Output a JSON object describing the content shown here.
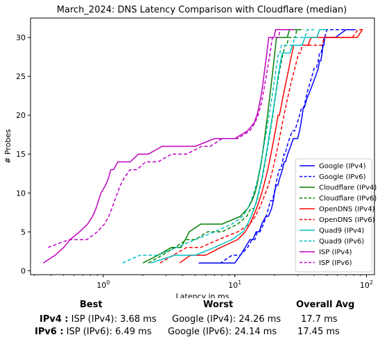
{
  "chart_data": {
    "type": "line",
    "title": "March_2024: DNS Latency Comparison with Cloudflare (median)",
    "xlabel": "Latency in ms",
    "ylabel": "# Probes",
    "xscale": "log",
    "xlim": [
      0.28,
      115
    ],
    "ylim": [
      -0.5,
      32.5
    ],
    "xticks": [
      {
        "value": 1,
        "label": "10^0"
      },
      {
        "value": 10,
        "label": "10^1"
      },
      {
        "value": 100,
        "label": "10^2"
      }
    ],
    "yticks": [
      0,
      5,
      10,
      15,
      20,
      25,
      30
    ],
    "legend_position": "lower-right",
    "series": [
      {
        "name": "Google (IPv4)",
        "color": "#0000ff",
        "dash": "solid",
        "x": [
          5.3,
          7,
          8.5,
          10,
          11,
          12,
          13,
          13.7,
          14.5,
          15.3,
          16,
          17.2,
          18,
          19,
          19.6,
          20,
          20.6,
          21.2,
          22,
          23,
          23.7,
          24.26,
          25.2,
          26.5,
          27.8,
          29,
          30,
          31,
          31.8,
          32.5,
          33.2,
          33.8,
          35,
          37,
          39,
          41,
          43,
          44,
          45,
          46,
          46.8,
          47.5,
          48.1,
          50,
          58,
          70,
          82
        ],
        "y": [
          1,
          1,
          1,
          1,
          2,
          3,
          4,
          4,
          5,
          5,
          6,
          7,
          7,
          8,
          9,
          10,
          11,
          11,
          12,
          13,
          14,
          14,
          15,
          16,
          17,
          17,
          17,
          18,
          19,
          20,
          21,
          21,
          22,
          23,
          24,
          25,
          26,
          27,
          27,
          28,
          29,
          29,
          30,
          30,
          30,
          31,
          31
        ]
      },
      {
        "name": "Google (IPv6)",
        "color": "#0000ff",
        "dash": "dashed",
        "x": [
          6.3,
          7.8,
          9.5,
          11,
          12.5,
          13.5,
          14.2,
          14.8,
          15.5,
          16.5,
          17.3,
          18,
          18.6,
          19.3,
          19.9,
          20.4,
          21,
          21.7,
          22.3,
          23,
          23.6,
          24.14,
          24.9,
          26,
          27.3,
          28.5,
          29.8,
          31,
          32.2,
          33.4,
          34.5,
          35.5,
          37,
          38.5,
          40,
          41.5,
          43,
          44,
          45.2,
          46.5,
          47.5,
          48.2,
          50,
          55,
          64,
          74,
          85
        ],
        "y": [
          1,
          1,
          2,
          2,
          3,
          4,
          4,
          5,
          5,
          6,
          7,
          8,
          9,
          9,
          10,
          11,
          12,
          13,
          13,
          14,
          15,
          15,
          16,
          17,
          18,
          18,
          19,
          20,
          21,
          21,
          22,
          23,
          24,
          25,
          26,
          26,
          27,
          28,
          28,
          29,
          30,
          30,
          31,
          31,
          31,
          31,
          31
        ]
      },
      {
        "name": "Cloudflare (IPv4)",
        "color": "#008000",
        "dash": "solid",
        "x": [
          2,
          2.6,
          3.3,
          3.9,
          4.2,
          4.5,
          5.5,
          8,
          11,
          12.5,
          13.5,
          14.2,
          14.7,
          15.1,
          15.5,
          15.9,
          16.2,
          16.5,
          16.8,
          17.1,
          17.4,
          17.7,
          18,
          18.3,
          18.6,
          18.9,
          19.2,
          19.5,
          19.8,
          20.1,
          20.4,
          20.7,
          21,
          21.3,
          21.6,
          21.9,
          22.3,
          22.8,
          23.3,
          24,
          25,
          26,
          27,
          28,
          29,
          30,
          31
        ],
        "y": [
          1,
          2,
          3,
          3,
          4,
          5,
          6,
          6,
          7,
          8,
          9,
          10,
          11,
          12,
          13,
          14,
          15,
          16,
          17,
          18,
          19,
          20,
          21,
          22,
          23,
          24,
          25,
          26,
          27,
          28,
          29,
          30,
          30,
          30,
          30,
          30,
          30,
          30,
          30,
          30,
          30,
          31,
          31,
          31,
          31,
          31,
          31
        ]
      },
      {
        "name": "Cloudflare (IPv6)",
        "color": "#008000",
        "dash": "dashed",
        "x": [
          2.2,
          2.8,
          3.5,
          4.3,
          5,
          6.2,
          8,
          10.5,
          12.3,
          13.2,
          14,
          14.7,
          15.2,
          15.7,
          16.2,
          16.6,
          17,
          17.4,
          17.8,
          18.2,
          18.6,
          19,
          19.4,
          19.8,
          20.2,
          20.6,
          21,
          21.5,
          22,
          22.6,
          23.3,
          24,
          24.8,
          25.6,
          26.4,
          27.2,
          28,
          28.8,
          29.5,
          30,
          30.5,
          31,
          31.5,
          32,
          32.5,
          33,
          33.5
        ],
        "y": [
          1,
          2,
          3,
          4,
          4,
          5,
          5,
          6,
          7,
          8,
          8,
          9,
          10,
          11,
          12,
          13,
          14,
          15,
          16,
          17,
          18,
          19,
          20,
          21,
          22,
          23,
          24,
          25,
          26,
          27,
          28,
          29,
          29,
          30,
          30,
          30,
          30,
          30,
          31,
          31,
          31,
          31,
          31,
          31,
          31,
          31,
          31
        ]
      },
      {
        "name": "OpenDNS (IPv4)",
        "color": "#ff0000",
        "dash": "solid",
        "x": [
          3.8,
          4.6,
          6,
          7.8,
          10.5,
          12,
          13,
          13.8,
          14.6,
          15.3,
          16,
          16.6,
          17.2,
          17.8,
          18.3,
          18.8,
          19.3,
          19.8,
          20.3,
          20.8,
          21.3,
          21.8,
          22.4,
          23,
          23.6,
          24.3,
          25,
          25.7,
          26.4,
          27.2,
          28,
          28.8,
          29.6,
          30.4,
          31.2,
          32,
          33,
          34,
          35,
          36,
          38,
          42,
          50,
          62,
          75,
          85,
          93
        ],
        "y": [
          1,
          2,
          2,
          3,
          4,
          5,
          6,
          7,
          8,
          9,
          10,
          11,
          12,
          13,
          14,
          15,
          16,
          17,
          18,
          19,
          20,
          20,
          21,
          22,
          23,
          24,
          25,
          26,
          27,
          28,
          29,
          29,
          29,
          29,
          29,
          29,
          29,
          29,
          29,
          29,
          30,
          30,
          30,
          30,
          30,
          30,
          31
        ]
      },
      {
        "name": "OpenDNS (IPv6)",
        "color": "#ff0000",
        "dash": "dashed",
        "x": [
          2.7,
          3.4,
          4.3,
          5.5,
          7.5,
          10.5,
          13,
          14.3,
          15.3,
          16.2,
          17.1,
          18,
          18.7,
          19.4,
          20,
          20.6,
          21.2,
          21.8,
          22.4,
          23,
          23.6,
          24.3,
          25,
          25.8,
          26.6,
          27.5,
          28.5,
          29.5,
          30.5,
          31.5,
          32.5,
          33.5,
          35,
          36.5,
          38,
          40,
          42,
          44,
          46,
          48,
          51,
          55,
          62,
          70,
          78,
          86,
          94
        ],
        "y": [
          1,
          2,
          3,
          3,
          4,
          5,
          6,
          7,
          8,
          9,
          10,
          11,
          12,
          13,
          14,
          15,
          16,
          17,
          18,
          19,
          20,
          21,
          22,
          23,
          24,
          25,
          26,
          27,
          28,
          28,
          29,
          29,
          29,
          29,
          29,
          29,
          29,
          29,
          29,
          30,
          30,
          30,
          30,
          30,
          30,
          31,
          31
        ]
      },
      {
        "name": "Quad9 (IPv4)",
        "color": "#00bfbf",
        "dash": "solid",
        "x": [
          2.3,
          3.5,
          5,
          7,
          9.5,
          11.5,
          12.5,
          13.3,
          14,
          14.6,
          15.1,
          15.6,
          16.1,
          16.5,
          16.9,
          17.3,
          17.7,
          18.1,
          18.5,
          18.9,
          19.3,
          19.7,
          20.1,
          20.5,
          20.9,
          21.3,
          21.8,
          22.3,
          22.9,
          23.5,
          24.3,
          25.2,
          26.2,
          27.3,
          28.5,
          29.8,
          31,
          32.5,
          34,
          36,
          38,
          40,
          42,
          44,
          46,
          48,
          50
        ],
        "y": [
          1,
          2,
          2,
          3,
          4,
          5,
          6,
          7,
          8,
          9,
          10,
          11,
          12,
          13,
          14,
          15,
          16,
          17,
          18,
          19,
          20,
          21,
          22,
          23,
          24,
          25,
          26,
          27,
          28,
          28,
          28,
          28,
          28,
          29,
          29,
          29,
          29,
          29,
          30,
          30,
          30,
          30,
          30,
          31,
          31,
          31,
          31
        ]
      },
      {
        "name": "Quad9 (IPv6)",
        "color": "#00bfbf",
        "dash": "dashed",
        "x": [
          1.4,
          1.9,
          2.6,
          3.6,
          5,
          7,
          9.5,
          11.5,
          12.5,
          13.3,
          13.9,
          14.5,
          15,
          15.4,
          15.8,
          16.2,
          16.6,
          17,
          17.4,
          17.8,
          18.2,
          18.6,
          19,
          19.4,
          19.8,
          20.2,
          20.6,
          21,
          21.5,
          22,
          22.6,
          23.3,
          24,
          24.8,
          25.6,
          26.5,
          27.5,
          28.5,
          29.5,
          31,
          32.5,
          34,
          35.5,
          37,
          38,
          39,
          40
        ],
        "y": [
          1,
          2,
          2,
          3,
          4,
          5,
          6,
          7,
          8,
          9,
          10,
          11,
          12,
          13,
          14,
          15,
          16,
          17,
          18,
          19,
          20,
          21,
          22,
          23,
          24,
          25,
          26,
          27,
          28,
          28,
          29,
          29,
          29,
          29,
          29,
          29,
          29,
          30,
          30,
          30,
          30,
          30,
          31,
          31,
          31,
          31,
          31
        ]
      },
      {
        "name": "ISP (IPv4)",
        "color": "#bf00bf",
        "dash": "solid",
        "x": [
          0.35,
          0.43,
          0.5,
          0.56,
          0.66,
          0.76,
          0.83,
          0.88,
          0.92,
          0.96,
          1.04,
          1.1,
          1.14,
          1.2,
          1.29,
          1.42,
          1.6,
          1.85,
          2.2,
          2.8,
          3.68,
          5,
          7,
          10,
          12.5,
          14,
          14.7,
          15.2,
          15.6,
          16,
          16.3,
          16.6,
          16.9,
          17.2,
          17.5,
          17.8,
          18.1,
          18.4,
          18.8,
          19.2,
          19.8,
          20.4,
          21,
          22,
          23.5,
          25.5,
          28
        ],
        "y": [
          1,
          2,
          3,
          4,
          5,
          6,
          7,
          8,
          9,
          10,
          11,
          12,
          13,
          13,
          14,
          14,
          14,
          15,
          15,
          16,
          16,
          16,
          17,
          17,
          18,
          19,
          20,
          21,
          22,
          23,
          24,
          25,
          26,
          27,
          28,
          29,
          30,
          30,
          30,
          30,
          30,
          31,
          31,
          31,
          31,
          31,
          31
        ]
      },
      {
        "name": "ISP (IPv6)",
        "color": "#bf00bf",
        "dash": "dashed",
        "x": [
          0.38,
          0.55,
          0.75,
          0.9,
          1.02,
          1.1,
          1.16,
          1.22,
          1.28,
          1.35,
          1.45,
          1.6,
          1.8,
          2.1,
          2.6,
          3.3,
          4.3,
          5.6,
          6.49,
          8,
          10.5,
          13,
          14.2,
          15,
          15.6,
          16.1,
          16.5,
          16.9,
          17.3,
          17.7,
          18.1,
          18.5,
          18.9,
          19.3,
          19.7,
          20.1,
          20.5,
          21,
          21.5,
          22,
          22.6,
          23.3,
          24,
          25,
          26,
          27.5,
          29
        ],
        "y": [
          3,
          4,
          4,
          5,
          6,
          7,
          8,
          9,
          10,
          11,
          12,
          13,
          13,
          14,
          14,
          15,
          15,
          16,
          16,
          17,
          17,
          18,
          19,
          20,
          21,
          22,
          23,
          24,
          25,
          26,
          27,
          28,
          29,
          30,
          30,
          30,
          30,
          30,
          30,
          31,
          31,
          31,
          31,
          31,
          31,
          31,
          31
        ]
      }
    ]
  },
  "summary": {
    "headers": {
      "best": "Best",
      "worst": "Worst",
      "avg": "Overall Avg"
    },
    "rows": [
      {
        "label": "IPv4 :",
        "best": "ISP (IPv4): 3.68 ms",
        "worst": "Google (IPv4): 24.26 ms",
        "avg": "17.7 ms"
      },
      {
        "label": "IPv6 :",
        "best": "ISP (IPv6): 6.49 ms",
        "worst": "Google (IPv6): 24.14 ms",
        "avg": "17.45 ms"
      }
    ]
  }
}
